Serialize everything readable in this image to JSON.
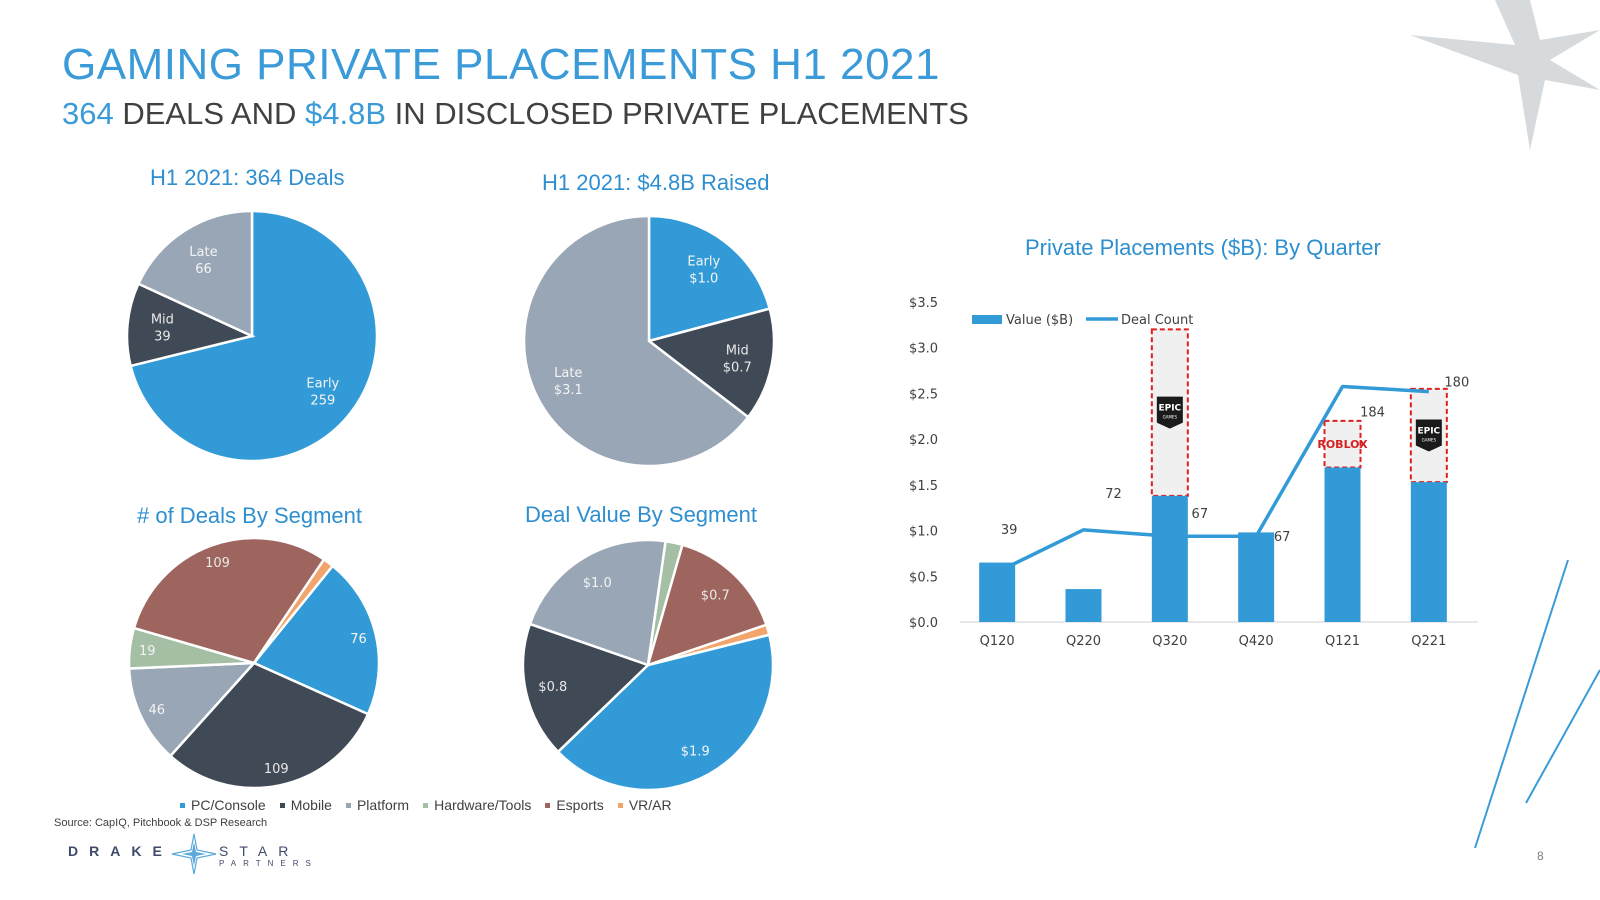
{
  "header": {
    "title": "GAMING PRIVATE PLACEMENTS H1 2021",
    "subtitle_part1": "364",
    "subtitle_part2": " DEALS AND ",
    "subtitle_part3": "$4.8B",
    "subtitle_part4": " IN DISCLOSED PRIVATE PLACEMENTS"
  },
  "colors": {
    "accent": "#3a9bd8",
    "early": "#329bd7",
    "mid": "#404a56",
    "late": "#98a6b5",
    "hardware": "#a5bfa5",
    "esports": "#9e655f",
    "vrar": "#f1a46c"
  },
  "chart_data": [
    {
      "type": "pie",
      "title": "H1 2021: 364 Deals",
      "slices": [
        {
          "name": "Early",
          "value": 259,
          "label": "259"
        },
        {
          "name": "Mid",
          "value": 39,
          "label": "39"
        },
        {
          "name": "Late",
          "value": 66,
          "label": "66"
        }
      ]
    },
    {
      "type": "pie",
      "title": "H1 2021: $4.8B Raised",
      "slices": [
        {
          "name": "Early",
          "value": 1.0,
          "label": "$1.0"
        },
        {
          "name": "Mid",
          "value": 0.7,
          "label": "$0.7"
        },
        {
          "name": "Late",
          "value": 3.1,
          "label": "$3.1"
        }
      ]
    },
    {
      "type": "pie",
      "title": "# of Deals By Segment",
      "slices": [
        {
          "name": "PC/Console",
          "value": 76,
          "label": "76"
        },
        {
          "name": "Mobile",
          "value": 109,
          "label": "109"
        },
        {
          "name": "Platform",
          "value": 46,
          "label": "46"
        },
        {
          "name": "Hardware/Tools",
          "value": 19,
          "label": "19"
        },
        {
          "name": "Esports",
          "value": 109,
          "label": "109"
        },
        {
          "name": "VR/AR",
          "value": 5,
          "label": ""
        }
      ]
    },
    {
      "type": "pie",
      "title": "Deal Value By Segment",
      "slices": [
        {
          "name": "PC/Console",
          "value": 1.9,
          "label": "$1.9"
        },
        {
          "name": "Mobile",
          "value": 0.8,
          "label": "$0.8"
        },
        {
          "name": "Platform",
          "value": 1.0,
          "label": "$1.0"
        },
        {
          "name": "Hardware/Tools",
          "value": 0.1,
          "label": ""
        },
        {
          "name": "Esports",
          "value": 0.7,
          "label": "$0.7"
        },
        {
          "name": "VR/AR",
          "value": 0.06,
          "label": ""
        }
      ]
    },
    {
      "type": "bar",
      "title": "Private Placements ($B): By Quarter",
      "categories": [
        "Q120",
        "Q220",
        "Q320",
        "Q420",
        "Q121",
        "Q221"
      ],
      "series": [
        {
          "name": "Value ($B)",
          "type": "bar",
          "values": [
            0.65,
            0.36,
            1.38,
            0.98,
            1.69,
            1.53
          ]
        },
        {
          "name": "Deal Count",
          "type": "line",
          "values": [
            39,
            72,
            67,
            67,
            184,
            180
          ]
        }
      ],
      "ylim": [
        0,
        3.5
      ],
      "yticks": [
        "$0.0",
        "$0.5",
        "$1.0",
        "$1.5",
        "$2.0",
        "$2.5",
        "$3.0",
        "$3.5"
      ],
      "legend": "top-left",
      "highlights": [
        {
          "category": "Q320",
          "to_value": 3.2,
          "logo": "EPIC GAMES"
        },
        {
          "category": "Q121",
          "to_value": 2.2,
          "logo": "ROBLOX"
        },
        {
          "category": "Q221",
          "to_value": 2.55,
          "logo": "EPIC GAMES"
        }
      ]
    }
  ],
  "segment_legend": [
    "PC/Console",
    "Mobile",
    "Platform",
    "Hardware/Tools",
    "Esports",
    "VR/AR"
  ],
  "footer": {
    "source": "Source: CapIQ, Pitchbook & DSP Research",
    "logo_word1": "DRAKE",
    "logo_word2": "STAR",
    "logo_word3": "PARTNERS",
    "page_number": "8"
  }
}
